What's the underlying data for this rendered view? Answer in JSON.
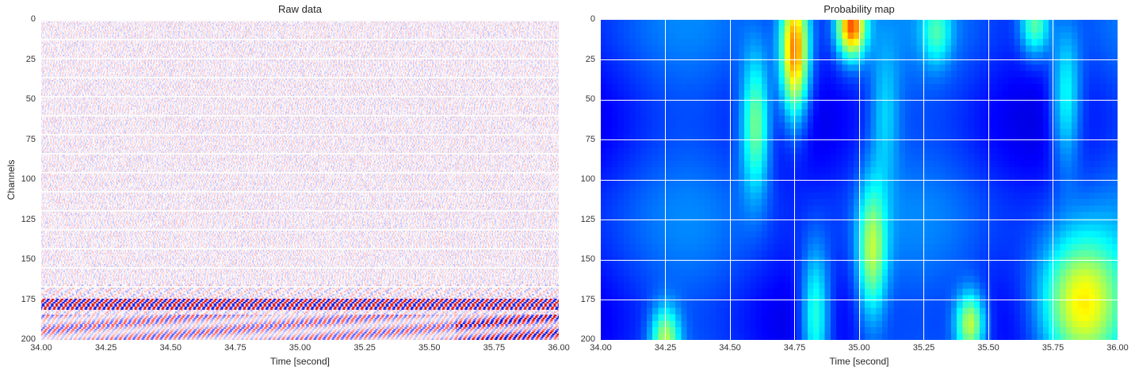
{
  "chart_data": [
    {
      "type": "heatmap",
      "title": "Raw data",
      "xlabel": "Time [second]",
      "ylabel": "Channels",
      "xlim": [
        34.0,
        36.0
      ],
      "ylim": [
        200,
        0
      ],
      "xticks": [
        "34.00",
        "34.25",
        "34.50",
        "34.75",
        "35.00",
        "35.25",
        "35.50",
        "35.75",
        "36.00"
      ],
      "yticks": [
        "0",
        "25",
        "50",
        "75",
        "100",
        "125",
        "150",
        "175",
        "200"
      ],
      "colormap": "seismic",
      "value_range": [
        -1,
        1
      ],
      "strong_bands": [
        {
          "channels": [
            174,
            181
          ],
          "amplitude": 0.9
        },
        {
          "channels": [
            184,
            200
          ],
          "amplitude": 0.8
        }
      ]
    },
    {
      "type": "heatmap",
      "title": "Probability map",
      "xlabel": "Time [second]",
      "ylabel": "",
      "xlim": [
        34.0,
        36.0
      ],
      "ylim": [
        200,
        0
      ],
      "xticks": [
        "34.00",
        "34.25",
        "34.50",
        "34.75",
        "35.00",
        "35.25",
        "35.50",
        "35.75",
        "36.00"
      ],
      "yticks": [
        "0",
        "25",
        "50",
        "75",
        "100",
        "125",
        "150",
        "175",
        "200"
      ],
      "colormap": "jet",
      "value_range": [
        0,
        1
      ],
      "grid": true,
      "hotspots": [
        {
          "time": 34.75,
          "channel": 20,
          "value": 0.75
        },
        {
          "time": 34.6,
          "channel": 65,
          "value": 0.5
        },
        {
          "time": 34.97,
          "channel": 4,
          "value": 0.75
        },
        {
          "time": 35.05,
          "channel": 145,
          "value": 0.5
        },
        {
          "time": 35.43,
          "channel": 190,
          "value": 0.55
        },
        {
          "time": 35.86,
          "channel": 178,
          "value": 0.65
        },
        {
          "time": 35.8,
          "channel": 50,
          "value": 0.4
        },
        {
          "time": 35.68,
          "channel": 3,
          "value": 0.45
        },
        {
          "time": 34.83,
          "channel": 185,
          "value": 0.45
        },
        {
          "time": 34.25,
          "channel": 199,
          "value": 0.5
        },
        {
          "time": 35.1,
          "channel": 60,
          "value": 0.3
        },
        {
          "time": 35.3,
          "channel": 8,
          "value": 0.35
        }
      ]
    }
  ]
}
